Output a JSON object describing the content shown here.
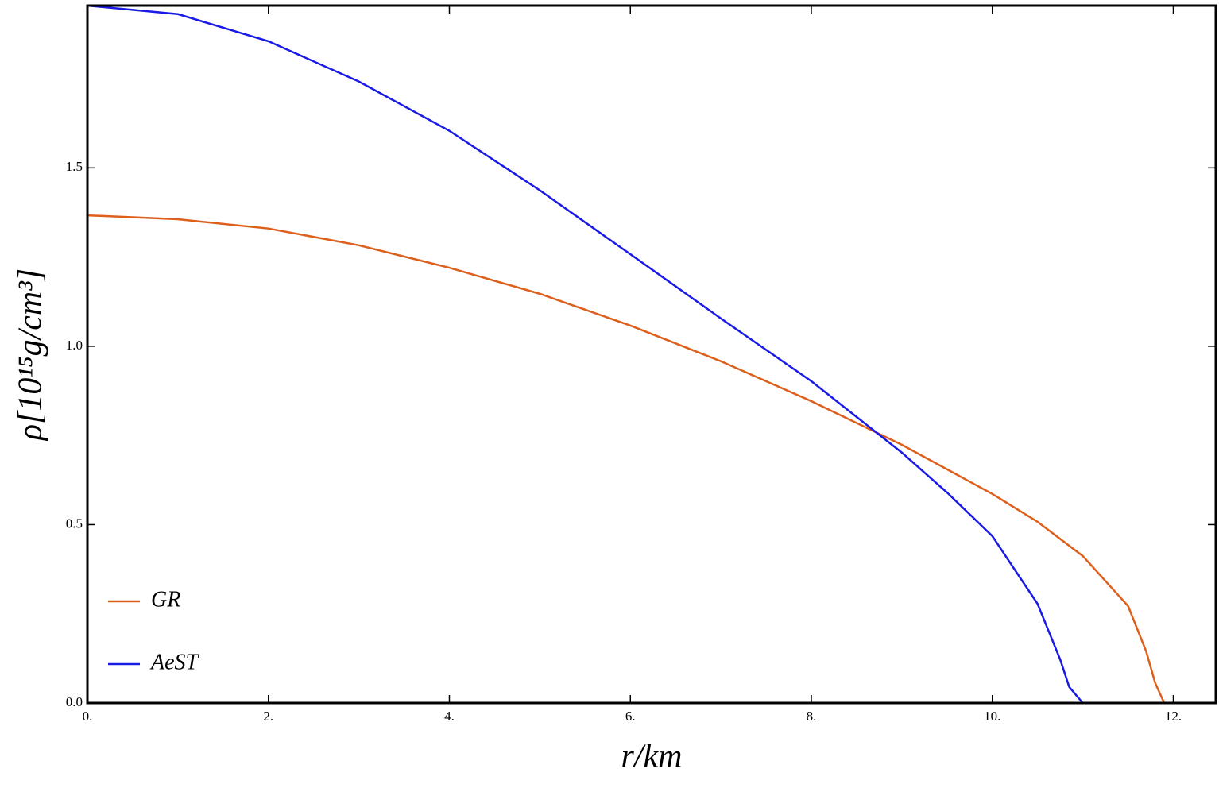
{
  "chart_data": {
    "type": "line",
    "x_label": "r/km",
    "y_label": "ρ[10¹⁵g/cm³]",
    "xlim": [
      0,
      12.47
    ],
    "ylim": [
      0,
      1.955
    ],
    "xticks": [
      {
        "value": 0,
        "label": "0."
      },
      {
        "value": 2,
        "label": "2."
      },
      {
        "value": 4,
        "label": "4."
      },
      {
        "value": 6,
        "label": "6."
      },
      {
        "value": 8,
        "label": "8."
      },
      {
        "value": 10,
        "label": "10."
      },
      {
        "value": 12,
        "label": "12."
      }
    ],
    "yticks": [
      {
        "value": 0,
        "label": "0.0"
      },
      0.5,
      {
        "value": 1,
        "label": "1.0"
      },
      1.5
    ],
    "legend": "bottom-left",
    "series": [
      {
        "name": "GR",
        "color": "#dd5f1c",
        "x": [
          0,
          1,
          2,
          3,
          4,
          5,
          6,
          7,
          8,
          9,
          10,
          10.5,
          11,
          11.5,
          11.7,
          11.8,
          11.9
        ],
        "values": [
          1.367,
          1.356,
          1.33,
          1.283,
          1.22,
          1.147,
          1.058,
          0.958,
          0.846,
          0.724,
          0.586,
          0.508,
          0.412,
          0.272,
          0.145,
          0.056,
          0
        ]
      },
      {
        "name": "AeST",
        "color": "#1a1ae6",
        "x": [
          0,
          1,
          2,
          3,
          4,
          5,
          6,
          7,
          8,
          9,
          9.5,
          10,
          10.5,
          10.75,
          10.85,
          11
        ],
        "values": [
          1.955,
          1.931,
          1.855,
          1.742,
          1.604,
          1.437,
          1.258,
          1.078,
          0.902,
          0.702,
          0.59,
          0.468,
          0.278,
          0.122,
          0.045,
          0
        ]
      }
    ]
  }
}
